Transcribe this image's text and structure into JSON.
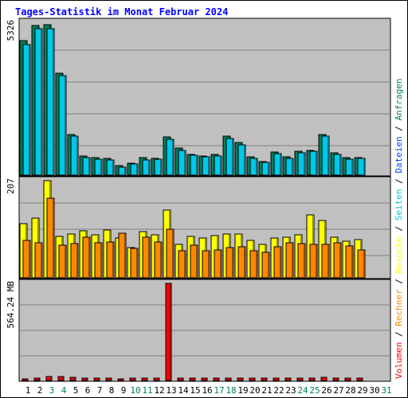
{
  "chart_data": {
    "type": "bar",
    "title": "Tages-Statistik im Monat Februar 2024",
    "days": [
      "1",
      "2",
      "3",
      "4",
      "5",
      "6",
      "7",
      "8",
      "9",
      "10",
      "11",
      "12",
      "13",
      "14",
      "15",
      "16",
      "17",
      "18",
      "19",
      "20",
      "21",
      "22",
      "23",
      "24",
      "25",
      "26",
      "27",
      "28",
      "29",
      "30",
      "31"
    ],
    "weekend_days": [
      "3",
      "4",
      "10",
      "11",
      "17",
      "18",
      "24",
      "25",
      "31"
    ],
    "panels": [
      {
        "name": "requests-files",
        "ymax_label": "5326",
        "ymax": 5326,
        "series": [
          {
            "name": "Anfragen",
            "color": "#00805c",
            "values": [
              4750,
              5300,
              5320,
              3620,
              1450,
              670,
              615,
              590,
              330,
              430,
              610,
              600,
              1340,
              960,
              730,
              690,
              740,
              1380,
              1160,
              640,
              490,
              830,
              640,
              840,
              870,
              1450,
              790,
              610,
              630,
              null,
              null
            ]
          },
          {
            "name": "Dateien",
            "color": "#00c8e8",
            "values": [
              4620,
              5180,
              5180,
              3520,
              1380,
              620,
              560,
              540,
              290,
              390,
              540,
              570,
              1260,
              870,
              700,
              650,
              680,
              1300,
              1080,
              580,
              440,
              770,
              600,
              790,
              840,
              1380,
              730,
              560,
              580,
              null,
              null
            ]
          }
        ]
      },
      {
        "name": "pages-visits",
        "ymax_label": "207",
        "ymax": 207,
        "series": [
          {
            "name": "Seiten",
            "color": "#ffff00",
            "values": [
              115,
              127,
              207,
              89,
              94,
              100,
              92,
              102,
              84,
              65,
              99,
              92,
              145,
              72,
              89,
              84,
              90,
              93,
              94,
              80,
              72,
              84,
              86,
              91,
              134,
              122,
              86,
              78,
              81,
              null,
              null
            ]
          },
          {
            "name": "Besuche",
            "color": "#ff8800",
            "values": [
              80,
              75,
              170,
              70,
              73,
              87,
              74,
              77,
              95,
              62,
              87,
              77,
              103,
              57,
              69,
              57,
              60,
              64,
              67,
              57,
              55,
              67,
              75,
              73,
              71,
              71,
              75,
              68,
              59,
              null,
              null
            ]
          }
        ]
      },
      {
        "name": "volume",
        "ymax_label": "564.24 MB",
        "ymax": 564.24,
        "series": [
          {
            "name": "Volumen",
            "color": "#ff0000",
            "values": [
              8,
              12,
              24,
              24,
              20,
              12,
              12,
              12,
              8,
              12,
              12,
              12,
              564,
              12,
              12,
              12,
              12,
              16,
              16,
              12,
              12,
              12,
              12,
              12,
              12,
              20,
              12,
              12,
              12,
              null,
              null
            ]
          }
        ]
      }
    ],
    "legend": [
      {
        "label": "Volumen",
        "color": "#ff0000"
      },
      {
        "label": "Rechner",
        "color": "#ff8800"
      },
      {
        "label": "Besuche",
        "color": "#ffff00"
      },
      {
        "label": "Seiten",
        "color": "#00c8e8"
      },
      {
        "label": "Dateien",
        "color": "#0040ff"
      },
      {
        "label": "Anfragen",
        "color": "#00805c"
      }
    ],
    "legend_separator": "/",
    "colors": {
      "title": "#0000ff",
      "plot_background": "#c0c0c0",
      "outer_background": "#ffffff",
      "gridline": "#808080",
      "weekday_label": "#000000",
      "weekend_label": "#00805c"
    }
  }
}
